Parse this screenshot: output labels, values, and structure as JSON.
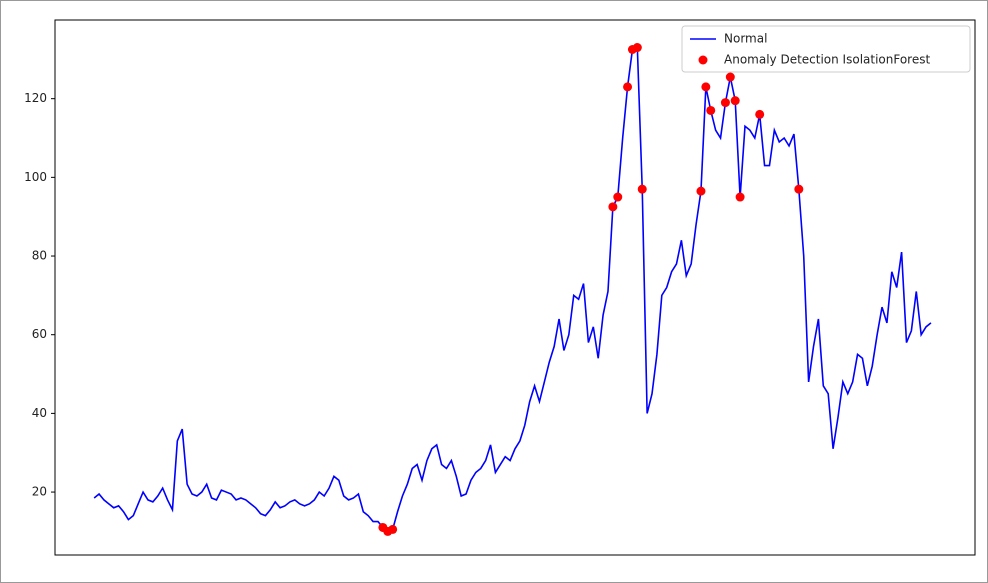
{
  "chart_data": {
    "type": "line",
    "xlim": [
      -8,
      180
    ],
    "ylim": [
      4,
      140
    ],
    "yticks": [
      20,
      40,
      60,
      80,
      100,
      120
    ],
    "legend": "upper right",
    "series": [
      {
        "name": "Normal",
        "type": "line",
        "color": "#0000ff",
        "values": [
          18.5,
          19.5,
          18,
          17,
          16,
          16.5,
          15,
          13,
          14,
          17,
          20,
          18,
          17.5,
          19,
          21,
          18,
          15.5,
          33,
          36,
          22,
          19.5,
          19,
          20,
          22,
          18.5,
          18,
          20.5,
          20,
          19.5,
          18,
          18.5,
          18,
          17,
          16,
          14.5,
          14,
          15.5,
          17.5,
          16,
          16.5,
          17.5,
          18,
          17,
          16.5,
          17,
          18,
          20,
          19,
          21,
          24,
          23,
          19,
          18,
          18.5,
          19.5,
          15,
          14,
          12.5,
          12.5,
          11,
          10,
          10.5,
          15,
          19,
          22,
          26,
          27,
          23,
          28,
          31,
          32,
          27,
          26,
          28,
          24,
          19,
          19.5,
          23,
          25,
          26,
          28,
          32,
          25,
          27,
          29,
          28,
          31,
          33,
          37,
          43,
          47,
          43,
          48,
          53,
          57,
          64,
          56,
          60,
          70,
          69,
          73,
          58,
          62,
          54,
          65,
          71,
          92.5,
          95,
          110,
          123,
          132.5,
          133,
          97,
          40,
          45,
          55,
          70,
          72,
          76,
          78,
          84,
          75,
          78,
          88,
          96.5,
          123,
          117,
          112,
          110,
          119,
          125.5,
          119.5,
          95,
          113,
          112,
          110,
          116,
          103,
          103,
          112,
          109,
          110,
          108,
          111,
          97,
          80,
          48,
          57,
          64,
          47,
          45,
          31,
          39,
          48,
          45,
          48,
          55,
          54,
          47,
          52,
          60,
          67,
          63,
          76,
          72,
          81,
          58,
          61,
          71,
          60,
          62,
          63
        ]
      },
      {
        "name": "Anomaly Detection IsolationForest",
        "type": "scatter",
        "color": "#ff0000",
        "x": [
          59,
          60,
          61,
          106,
          107,
          109,
          110,
          111,
          112,
          124,
          125,
          126,
          129,
          130,
          131,
          132,
          136,
          144
        ],
        "values": [
          11,
          10,
          10.5,
          92.5,
          95,
          123,
          132.5,
          133,
          97,
          96.5,
          123,
          117,
          119,
          125.5,
          119.5,
          95,
          116,
          97
        ]
      }
    ]
  }
}
